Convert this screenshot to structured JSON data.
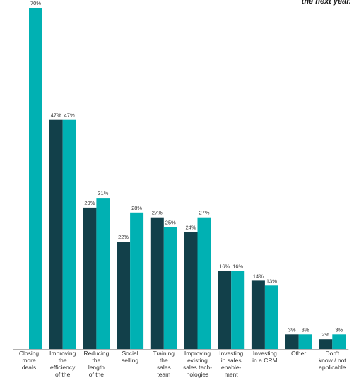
{
  "header": {
    "corner_text": "the next year."
  },
  "colors": {
    "series_a": "#12404a",
    "series_b": "#00b1b3",
    "baseline": "#b0b0b0",
    "text": "#333333"
  },
  "chart_data": {
    "type": "bar",
    "title": "",
    "xlabel": "",
    "ylabel": "",
    "ylim": [
      0,
      70
    ],
    "grid": false,
    "legend": "none",
    "categories": [
      [
        "Closing",
        "more",
        "deals"
      ],
      [
        "Improving",
        "the",
        "efficiency",
        "of the"
      ],
      [
        "Reducing",
        "the",
        "length",
        "of the"
      ],
      [
        "Social",
        "selling"
      ],
      [
        "Training",
        "the",
        "sales",
        "team"
      ],
      [
        "Improving",
        "existing",
        "sales tech-",
        "nologies"
      ],
      [
        "Investing",
        "in sales",
        "enable-",
        "ment"
      ],
      [
        "Investing",
        "in a CRM"
      ],
      [
        "Other"
      ],
      [
        "Don't",
        "know / not",
        "applicable"
      ]
    ],
    "series": [
      {
        "values": [
          null,
          47,
          29,
          22,
          27,
          24,
          16,
          14,
          3,
          2
        ],
        "labels": [
          "",
          "47%",
          "29%",
          "22%",
          "27%",
          "24%",
          "16%",
          "14%",
          "3%",
          "2%"
        ]
      },
      {
        "values": [
          70,
          47,
          31,
          28,
          25,
          27,
          16,
          13,
          3,
          3
        ],
        "labels": [
          "70%",
          "47%",
          "31%",
          "28%",
          "25%",
          "27%",
          "16%",
          "13%",
          "3%",
          "3%"
        ]
      }
    ]
  }
}
